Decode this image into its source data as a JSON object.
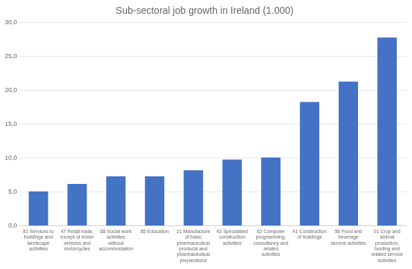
{
  "chart_data": {
    "type": "bar",
    "title": "Sub-sectoral job growth in Ireland (1.000)",
    "categories": [
      "81 Services to\nbuildings and\nlandscape\nactivities",
      "47 Retail trade,\nexcept of motor\nvehicles and\nmotorcycles",
      "88 Social work\nactivities\nwithout\naccommodation",
      "85 Education",
      "21 Manufacture\nof basic\npharmaceutical\nproducts and\npharmaceutical\npreparations",
      "43 Specialised\nconstruction\nactivities",
      "62 Computer\nprogramming,\nconsultancy and\nrelated\nactivities",
      "41 Construction\nof buildings",
      "56 Food and\nbeverage\nservice activities",
      "01 Crop and\nanimal\nproduction,\nhunting and\nrelated service\nactivities"
    ],
    "values": [
      5.1,
      6.2,
      7.3,
      7.3,
      8.2,
      9.8,
      10.1,
      18.3,
      21.3,
      27.8
    ],
    "color": "#4472C4",
    "ylim": [
      0,
      30
    ],
    "yticks": [
      {
        "value": 0,
        "label": "0,0"
      },
      {
        "value": 5,
        "label": "5,0"
      },
      {
        "value": 10,
        "label": "10,0"
      },
      {
        "value": 15,
        "label": "15,0"
      },
      {
        "value": 20,
        "label": "20,0"
      },
      {
        "value": 25,
        "label": "25,0"
      },
      {
        "value": 30,
        "label": "30,0"
      }
    ],
    "grid": true
  }
}
